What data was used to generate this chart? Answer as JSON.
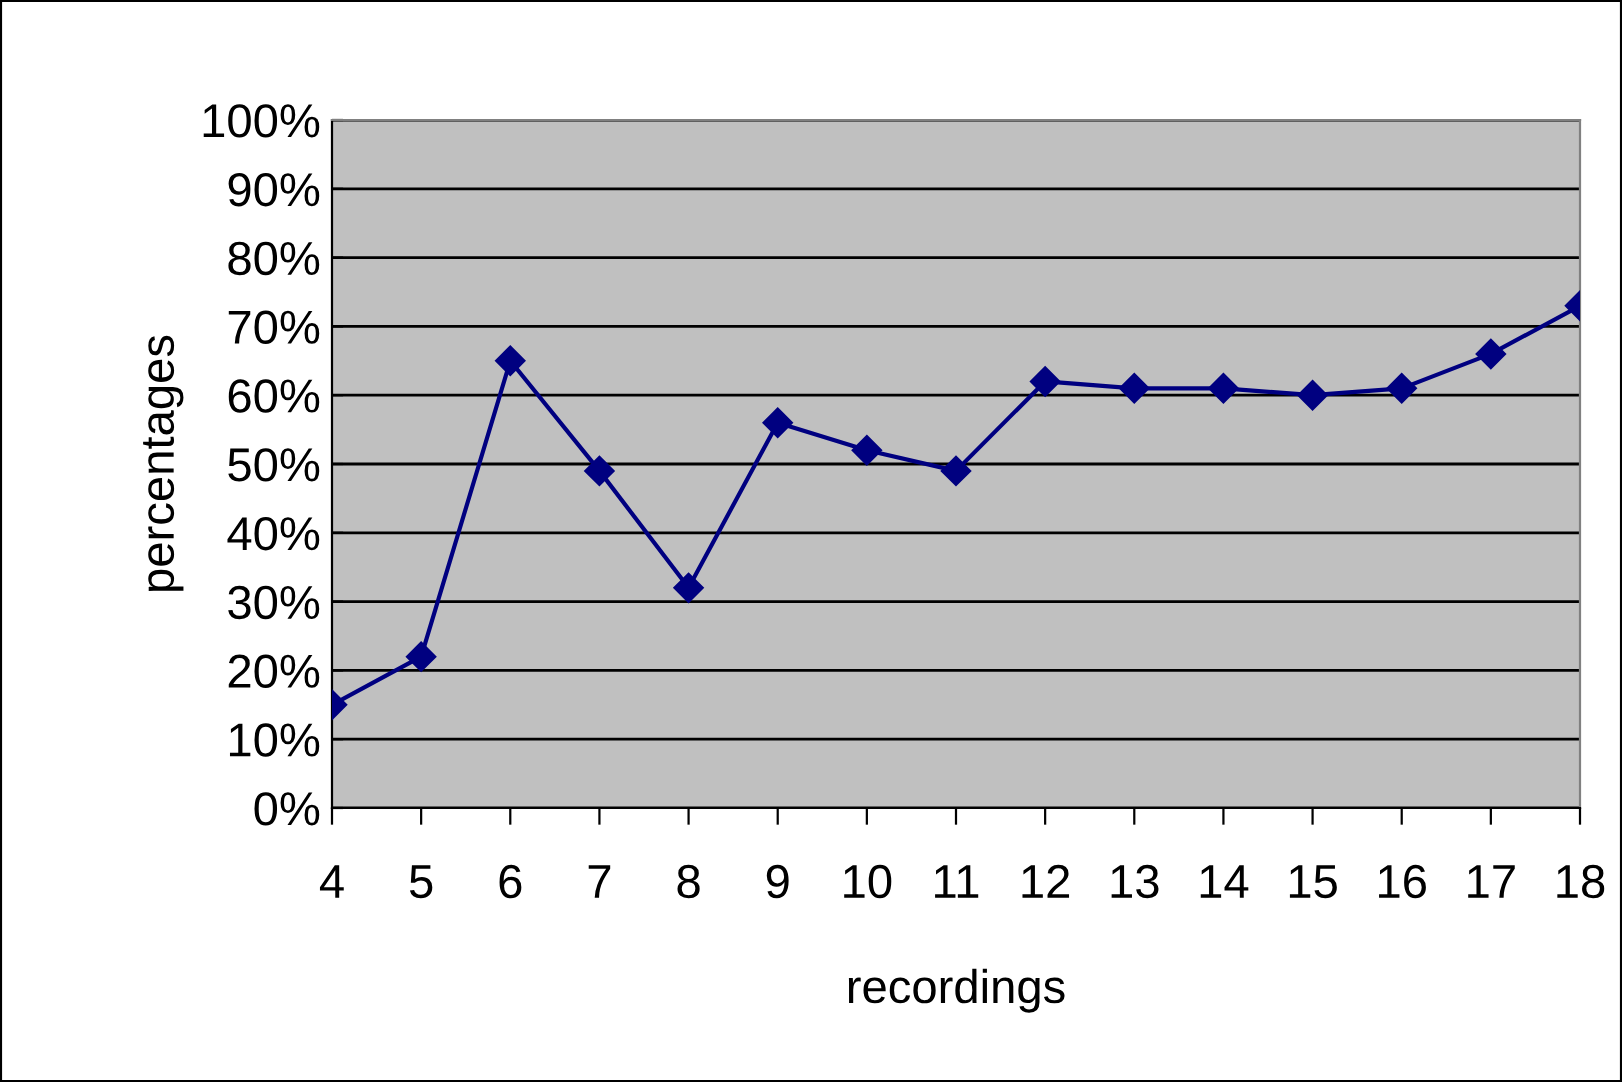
{
  "chart_data": {
    "type": "line",
    "xlabel": "recordings",
    "ylabel": "percentages",
    "x": [
      4,
      5,
      6,
      7,
      8,
      9,
      10,
      11,
      12,
      13,
      14,
      15,
      16,
      17,
      18
    ],
    "series": [
      {
        "color": "#000080",
        "values": [
          15,
          22,
          65,
          49,
          32,
          56,
          52,
          49,
          62,
          61,
          61,
          60,
          61,
          66,
          73
        ]
      }
    ],
    "xlim": [
      4,
      18
    ],
    "xticks": [
      4,
      5,
      6,
      7,
      8,
      9,
      10,
      11,
      12,
      13,
      14,
      15,
      16,
      17,
      18
    ],
    "ylim": [
      0,
      100
    ],
    "yticks": [
      {
        "value": 0,
        "label": "0%"
      },
      {
        "value": 10,
        "label": "10%"
      },
      {
        "value": 20,
        "label": "20%"
      },
      {
        "value": 30,
        "label": "30%"
      },
      {
        "value": 40,
        "label": "40%"
      },
      {
        "value": 50,
        "label": "50%"
      },
      {
        "value": 60,
        "label": "60%"
      },
      {
        "value": 70,
        "label": "70%"
      },
      {
        "value": 80,
        "label": "80%"
      },
      {
        "value": 90,
        "label": "90%"
      },
      {
        "value": 100,
        "label": "100%"
      }
    ],
    "grid": "y",
    "marker": "diamond",
    "line_style": "solid",
    "legend": false
  }
}
